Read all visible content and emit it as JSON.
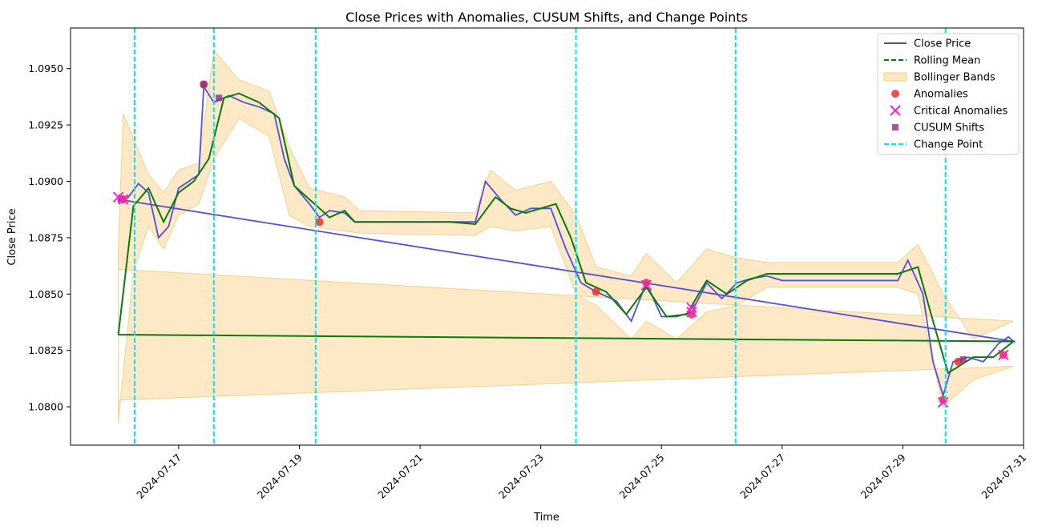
{
  "chart_data": {
    "type": "line",
    "title": "Close Prices with Anomalies, CUSUM Shifts, and Change Points",
    "xlabel": "Time",
    "ylabel": "Close Price",
    "xlim": [
      "2024-07-15T05:00",
      "2024-07-31T00:00"
    ],
    "ylim": [
      1.0783,
      1.0968
    ],
    "x_ticks": [
      "2024-07-17",
      "2024-07-19",
      "2024-07-21",
      "2024-07-23",
      "2024-07-25",
      "2024-07-27",
      "2024-07-29",
      "2024-07-31"
    ],
    "y_ticks": [
      "1.0800",
      "1.0825",
      "1.0850",
      "1.0875",
      "1.0900",
      "1.0925",
      "1.0950"
    ],
    "legend_position": "top-right",
    "colors": {
      "close": "#4b45e0",
      "rolling": "#0a7a0a",
      "bands": "#fde8c4",
      "bands_edge": "#f7cf86",
      "anomaly": "#e83030",
      "critical": "#ff1ed6",
      "cusum": "#8b2a8b",
      "change_point": "#00e5ff"
    },
    "legend": [
      {
        "label": "Close Price",
        "kind": "line",
        "color": "#4b45e0"
      },
      {
        "label": "Rolling Mean",
        "kind": "dashed-line",
        "color": "#0a7a0a"
      },
      {
        "label": "Bollinger Bands",
        "kind": "patch",
        "color": "#fde8c4"
      },
      {
        "label": "Anomalies",
        "kind": "circle",
        "color": "#e83030"
      },
      {
        "label": "Critical Anomalies",
        "kind": "x",
        "color": "#ff1ed6"
      },
      {
        "label": "CUSUM Shifts",
        "kind": "square",
        "color": "#8b2a8b"
      },
      {
        "label": "Change Point",
        "kind": "dashed-line",
        "color": "#00e5ff"
      }
    ],
    "close_price": [
      [
        "2024-07-16T00:00",
        1.0892
      ],
      [
        "2024-07-16T04:00",
        1.0893
      ],
      [
        "2024-07-16T08:00",
        1.0899
      ],
      [
        "2024-07-16T12:00",
        1.0895
      ],
      [
        "2024-07-16T16:00",
        1.0875
      ],
      [
        "2024-07-16T20:00",
        1.088
      ],
      [
        "2024-07-17T00:00",
        1.0897
      ],
      [
        "2024-07-17T04:00",
        1.09
      ],
      [
        "2024-07-17T08:00",
        1.0903
      ],
      [
        "2024-07-17T10:00",
        1.0942
      ],
      [
        "2024-07-17T14:00",
        1.0935
      ],
      [
        "2024-07-17T20:00",
        1.0938
      ],
      [
        "2024-07-18T02:00",
        1.0935
      ],
      [
        "2024-07-18T08:00",
        1.0933
      ],
      [
        "2024-07-18T14:00",
        1.093
      ],
      [
        "2024-07-18T18:00",
        1.091
      ],
      [
        "2024-07-18T22:00",
        1.0898
      ],
      [
        "2024-07-19T04:00",
        1.089
      ],
      [
        "2024-07-19T08:00",
        1.0884
      ],
      [
        "2024-07-19T12:00",
        1.0887
      ],
      [
        "2024-07-19T18:00",
        1.0886
      ],
      [
        "2024-07-19T22:00",
        1.0882
      ],
      [
        "2024-07-20T06:00",
        1.0882
      ],
      [
        "2024-07-21T12:00",
        1.0882
      ],
      [
        "2024-07-21T22:00",
        1.0882
      ],
      [
        "2024-07-22T02:00",
        1.09
      ],
      [
        "2024-07-22T08:00",
        1.0892
      ],
      [
        "2024-07-22T14:00",
        1.0885
      ],
      [
        "2024-07-22T20:00",
        1.0888
      ],
      [
        "2024-07-23T04:00",
        1.0888
      ],
      [
        "2024-07-23T10:00",
        1.087
      ],
      [
        "2024-07-23T16:00",
        1.0855
      ],
      [
        "2024-07-23T22:00",
        1.0851
      ],
      [
        "2024-07-24T06:00",
        1.0847
      ],
      [
        "2024-07-24T12:00",
        1.0838
      ],
      [
        "2024-07-24T18:00",
        1.0855
      ],
      [
        "2024-07-25T00:00",
        1.084
      ],
      [
        "2024-07-25T06:00",
        1.084
      ],
      [
        "2024-07-25T12:00",
        1.0842
      ],
      [
        "2024-07-25T18:00",
        1.0855
      ],
      [
        "2024-07-26T00:00",
        1.0848
      ],
      [
        "2024-07-26T06:00",
        1.0855
      ],
      [
        "2024-07-26T12:00",
        1.0857
      ],
      [
        "2024-07-26T18:00",
        1.0858
      ],
      [
        "2024-07-27T00:00",
        1.0856
      ],
      [
        "2024-07-28T12:00",
        1.0856
      ],
      [
        "2024-07-28T22:00",
        1.0856
      ],
      [
        "2024-07-29T02:00",
        1.0865
      ],
      [
        "2024-07-29T08:00",
        1.085
      ],
      [
        "2024-07-29T12:00",
        1.082
      ],
      [
        "2024-07-29T16:00",
        1.0805
      ],
      [
        "2024-07-29T20:00",
        1.082
      ],
      [
        "2024-07-30T02:00",
        1.0822
      ],
      [
        "2024-07-30T08:00",
        1.082
      ],
      [
        "2024-07-30T14:00",
        1.0828
      ],
      [
        "2024-07-30T18:00",
        1.0831
      ],
      [
        "2024-07-30T20:00",
        1.0829
      ],
      [
        "2024-07-16T00:00",
        1.0892
      ]
    ],
    "rolling_mean": [
      [
        "2024-07-16T00:00",
        1.0832
      ],
      [
        "2024-07-16T06:00",
        1.0889
      ],
      [
        "2024-07-16T12:00",
        1.0897
      ],
      [
        "2024-07-16T18:00",
        1.0882
      ],
      [
        "2024-07-17T00:00",
        1.0895
      ],
      [
        "2024-07-17T06:00",
        1.09
      ],
      [
        "2024-07-17T12:00",
        1.091
      ],
      [
        "2024-07-17T18:00",
        1.0937
      ],
      [
        "2024-07-18T00:00",
        1.0939
      ],
      [
        "2024-07-18T08:00",
        1.0935
      ],
      [
        "2024-07-18T16:00",
        1.0928
      ],
      [
        "2024-07-18T22:00",
        1.0898
      ],
      [
        "2024-07-19T06:00",
        1.089
      ],
      [
        "2024-07-19T12:00",
        1.0884
      ],
      [
        "2024-07-19T18:00",
        1.0887
      ],
      [
        "2024-07-19T22:00",
        1.0882
      ],
      [
        "2024-07-21T12:00",
        1.0882
      ],
      [
        "2024-07-21T22:00",
        1.0881
      ],
      [
        "2024-07-22T06:00",
        1.0893
      ],
      [
        "2024-07-22T12:00",
        1.0888
      ],
      [
        "2024-07-22T18:00",
        1.0886
      ],
      [
        "2024-07-23T06:00",
        1.089
      ],
      [
        "2024-07-23T12:00",
        1.0875
      ],
      [
        "2024-07-23T18:00",
        1.0855
      ],
      [
        "2024-07-24T02:00",
        1.0851
      ],
      [
        "2024-07-24T10:00",
        1.0841
      ],
      [
        "2024-07-24T18:00",
        1.0853
      ],
      [
        "2024-07-25T02:00",
        1.084
      ],
      [
        "2024-07-25T10:00",
        1.0841
      ],
      [
        "2024-07-25T18:00",
        1.0856
      ],
      [
        "2024-07-26T02:00",
        1.085
      ],
      [
        "2024-07-26T10:00",
        1.0856
      ],
      [
        "2024-07-26T18:00",
        1.0859
      ],
      [
        "2024-07-27T00:00",
        1.0859
      ],
      [
        "2024-07-28T22:00",
        1.0859
      ],
      [
        "2024-07-29T06:00",
        1.0862
      ],
      [
        "2024-07-29T12:00",
        1.0838
      ],
      [
        "2024-07-29T18:00",
        1.0815
      ],
      [
        "2024-07-30T04:00",
        1.0822
      ],
      [
        "2024-07-30T12:00",
        1.0822
      ],
      [
        "2024-07-30T20:00",
        1.0829
      ],
      [
        "2024-07-16T00:00",
        1.0832
      ]
    ],
    "bollinger_bands": {
      "upper": [
        [
          "2024-07-16T00:00",
          1.087
        ],
        [
          "2024-07-16T02:00",
          1.093
        ],
        [
          "2024-07-16T12:00",
          1.0903
        ],
        [
          "2024-07-16T18:00",
          1.0895
        ],
        [
          "2024-07-17T00:00",
          1.0905
        ],
        [
          "2024-07-17T08:00",
          1.0908
        ],
        [
          "2024-07-17T14:00",
          1.0958
        ],
        [
          "2024-07-18T00:00",
          1.0945
        ],
        [
          "2024-07-18T12:00",
          1.094
        ],
        [
          "2024-07-18T20:00",
          1.0915
        ],
        [
          "2024-07-19T04:00",
          1.0897
        ],
        [
          "2024-07-19T18:00",
          1.0893
        ],
        [
          "2024-07-20T00:00",
          1.0887
        ],
        [
          "2024-07-21T22:00",
          1.0886
        ],
        [
          "2024-07-22T04:00",
          1.0905
        ],
        [
          "2024-07-22T14:00",
          1.0896
        ],
        [
          "2024-07-23T04:00",
          1.09
        ],
        [
          "2024-07-23T14:00",
          1.0885
        ],
        [
          "2024-07-23T22:00",
          1.0862
        ],
        [
          "2024-07-24T12:00",
          1.0858
        ],
        [
          "2024-07-24T18:00",
          1.0868
        ],
        [
          "2024-07-25T06:00",
          1.0855
        ],
        [
          "2024-07-25T18:00",
          1.087
        ],
        [
          "2024-07-26T06:00",
          1.0866
        ],
        [
          "2024-07-26T18:00",
          1.0864
        ],
        [
          "2024-07-28T22:00",
          1.0864
        ],
        [
          "2024-07-29T06:00",
          1.0872
        ],
        [
          "2024-07-29T16:00",
          1.085
        ],
        [
          "2024-07-30T04:00",
          1.083
        ],
        [
          "2024-07-30T20:00",
          1.0838
        ],
        [
          "2024-07-16T00:00",
          1.0861
        ]
      ],
      "lower": [
        [
          "2024-07-16T00:00",
          1.0793
        ],
        [
          "2024-07-16T06:00",
          1.086
        ],
        [
          "2024-07-16T12:00",
          1.088
        ],
        [
          "2024-07-16T18:00",
          1.087
        ],
        [
          "2024-07-17T00:00",
          1.0885
        ],
        [
          "2024-07-17T08:00",
          1.089
        ],
        [
          "2024-07-17T14:00",
          1.091
        ],
        [
          "2024-07-18T00:00",
          1.0928
        ],
        [
          "2024-07-18T12:00",
          1.092
        ],
        [
          "2024-07-18T20:00",
          1.0885
        ],
        [
          "2024-07-19T04:00",
          1.088
        ],
        [
          "2024-07-19T18:00",
          1.0878
        ],
        [
          "2024-07-20T00:00",
          1.0877
        ],
        [
          "2024-07-21T22:00",
          1.0876
        ],
        [
          "2024-07-22T04:00",
          1.088
        ],
        [
          "2024-07-22T14:00",
          1.0878
        ],
        [
          "2024-07-23T04:00",
          1.088
        ],
        [
          "2024-07-23T14:00",
          1.085
        ],
        [
          "2024-07-23T22:00",
          1.0845
        ],
        [
          "2024-07-24T12:00",
          1.083
        ],
        [
          "2024-07-24T18:00",
          1.0838
        ],
        [
          "2024-07-25T06:00",
          1.083
        ],
        [
          "2024-07-25T18:00",
          1.0842
        ],
        [
          "2024-07-26T06:00",
          1.0845
        ],
        [
          "2024-07-26T18:00",
          1.0853
        ],
        [
          "2024-07-28T22:00",
          1.0853
        ],
        [
          "2024-07-29T06:00",
          1.085
        ],
        [
          "2024-07-29T16:00",
          1.08
        ],
        [
          "2024-07-30T04:00",
          1.0812
        ],
        [
          "2024-07-30T20:00",
          1.0818
        ],
        [
          "2024-07-16T00:00",
          1.0803
        ]
      ]
    },
    "anomalies": [
      [
        "2024-07-16T02:00",
        1.0892
      ],
      [
        "2024-07-17T10:00",
        1.0943
      ],
      [
        "2024-07-19T08:00",
        1.0882
      ],
      [
        "2024-07-23T22:00",
        1.0851
      ],
      [
        "2024-07-24T18:00",
        1.0855
      ],
      [
        "2024-07-25T12:00",
        1.0841
      ],
      [
        "2024-07-29T16:00",
        1.0803
      ],
      [
        "2024-07-29T22:00",
        1.082
      ],
      [
        "2024-07-30T16:00",
        1.0823
      ]
    ],
    "critical_anomalies": [
      [
        "2024-07-16T00:00",
        1.0893
      ],
      [
        "2024-07-16T02:00",
        1.0892
      ],
      [
        "2024-07-24T18:00",
        1.0854
      ],
      [
        "2024-07-25T12:00",
        1.0842
      ],
      [
        "2024-07-25T12:00",
        1.0844
      ],
      [
        "2024-07-29T16:00",
        1.0802
      ],
      [
        "2024-07-30T16:00",
        1.0823
      ]
    ],
    "cusum_shifts": [
      [
        "2024-07-16T01:00",
        1.0892
      ],
      [
        "2024-07-17T10:00",
        1.0943
      ],
      [
        "2024-07-17T16:00",
        1.0937
      ],
      [
        "2024-07-30T00:00",
        1.0821
      ]
    ],
    "change_points": [
      "2024-07-16T06:30",
      "2024-07-17T14:00",
      "2024-07-19T06:30",
      "2024-07-23T14:00",
      "2024-07-26T05:30",
      "2024-07-29T17:00"
    ]
  }
}
